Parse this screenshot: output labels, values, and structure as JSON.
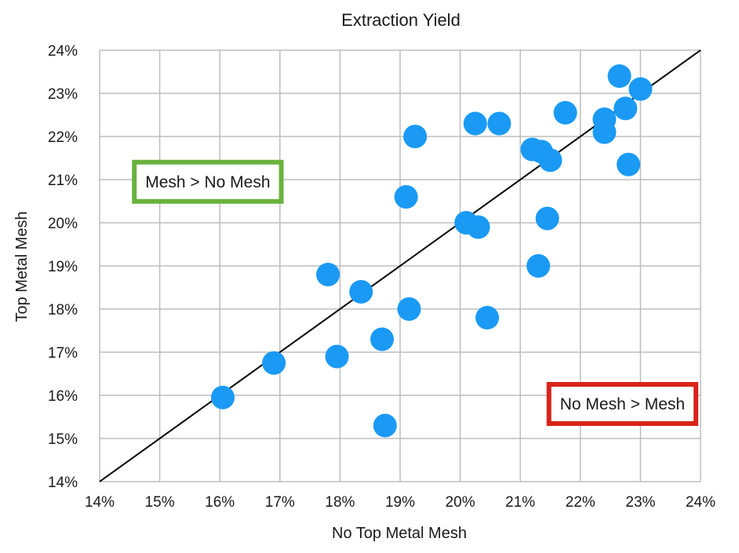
{
  "chart_data": {
    "type": "scatter",
    "title": "Extraction Yield",
    "xlabel": "No Top Metal Mesh",
    "ylabel": "Top Metal Mesh",
    "xlim": [
      14,
      24
    ],
    "ylim": [
      14,
      24
    ],
    "x_ticks": [
      "14%",
      "15%",
      "16%",
      "17%",
      "18%",
      "19%",
      "20%",
      "21%",
      "22%",
      "23%",
      "24%"
    ],
    "y_ticks": [
      "14%",
      "15%",
      "16%",
      "17%",
      "18%",
      "19%",
      "20%",
      "21%",
      "22%",
      "23%",
      "24%"
    ],
    "grid": true,
    "reference_line": {
      "type": "y=x",
      "color": "#000000"
    },
    "point_color": "#1a9af5",
    "points": [
      {
        "x": 16.05,
        "y": 15.95
      },
      {
        "x": 16.9,
        "y": 16.75
      },
      {
        "x": 17.8,
        "y": 18.8
      },
      {
        "x": 17.95,
        "y": 16.9
      },
      {
        "x": 18.35,
        "y": 18.4
      },
      {
        "x": 18.7,
        "y": 17.3
      },
      {
        "x": 18.75,
        "y": 15.3
      },
      {
        "x": 19.1,
        "y": 20.6
      },
      {
        "x": 19.15,
        "y": 18.0
      },
      {
        "x": 19.25,
        "y": 22.0
      },
      {
        "x": 20.1,
        "y": 20.0
      },
      {
        "x": 20.25,
        "y": 22.3
      },
      {
        "x": 20.3,
        "y": 19.9
      },
      {
        "x": 20.45,
        "y": 17.8
      },
      {
        "x": 20.65,
        "y": 22.3
      },
      {
        "x": 21.2,
        "y": 21.7
      },
      {
        "x": 21.3,
        "y": 19.0
      },
      {
        "x": 21.35,
        "y": 21.65
      },
      {
        "x": 21.45,
        "y": 20.1
      },
      {
        "x": 21.5,
        "y": 21.45
      },
      {
        "x": 21.75,
        "y": 22.55
      },
      {
        "x": 22.4,
        "y": 22.4
      },
      {
        "x": 22.4,
        "y": 22.1
      },
      {
        "x": 22.65,
        "y": 23.4
      },
      {
        "x": 22.75,
        "y": 22.65
      },
      {
        "x": 22.8,
        "y": 21.35
      },
      {
        "x": 23.0,
        "y": 23.1
      }
    ],
    "annotations": [
      {
        "text": "Mesh > No Mesh",
        "border_color": "#6ab23e",
        "x": 15.8,
        "y": 20.95
      },
      {
        "text": "No Mesh > Mesh",
        "border_color": "#d9241b",
        "x": 22.7,
        "y": 15.8
      }
    ]
  }
}
